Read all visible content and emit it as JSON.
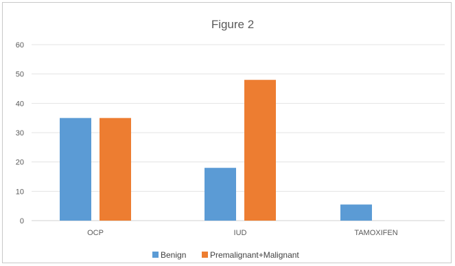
{
  "chart_data": {
    "type": "bar",
    "title": "Figure 2",
    "xlabel": "",
    "ylabel": "",
    "categories": [
      "OCP",
      "IUD",
      "TAMOXIFEN"
    ],
    "series": [
      {
        "name": "Benign",
        "values": [
          35,
          18,
          5.5
        ],
        "color": "#5b9bd5"
      },
      {
        "name": "Premalignant+Malignant",
        "values": [
          35,
          48,
          0
        ],
        "color": "#ed7d31"
      }
    ],
    "ylim": [
      0,
      60
    ],
    "yticks": [
      0,
      10,
      20,
      30,
      40,
      50,
      60
    ],
    "grid": true,
    "legend_position": "bottom"
  }
}
